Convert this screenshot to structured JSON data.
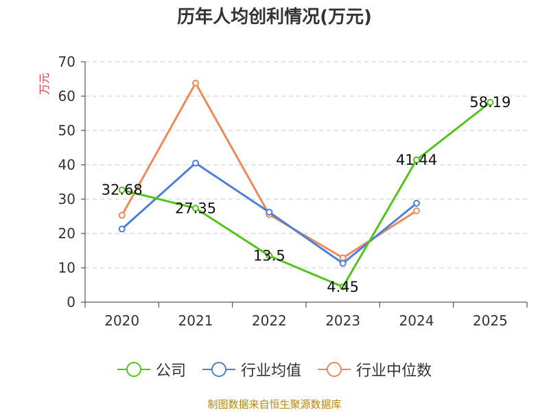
{
  "chart_data": {
    "type": "line",
    "title": "历年人均创利情况(万元)",
    "ylabel": "万元",
    "categories": [
      "2020",
      "2021",
      "2022",
      "2023",
      "2024",
      "2025"
    ],
    "ylim": [
      0,
      70
    ],
    "yticks": [
      0,
      10,
      20,
      30,
      40,
      50,
      60,
      70
    ],
    "grid": "horizontal-dashed",
    "legend_position": "bottom-center",
    "series": [
      {
        "name": "公司",
        "color": "#52c41a",
        "values": [
          32.68,
          27.35,
          13.5,
          4.45,
          41.44,
          58.19
        ],
        "labels": [
          "32.68",
          "27.35",
          "13.5",
          "4.45",
          "41.44",
          "58.19"
        ]
      },
      {
        "name": "行业均值",
        "color": "#4a7fdc",
        "values": [
          21.3,
          40.5,
          26.2,
          11.3,
          28.8,
          null
        ]
      },
      {
        "name": "行业中位数",
        "color": "#f0885a",
        "values": [
          25.3,
          63.8,
          25.5,
          12.9,
          26.6,
          null
        ]
      }
    ]
  },
  "source": "制图数据来自恒生聚源数据库"
}
